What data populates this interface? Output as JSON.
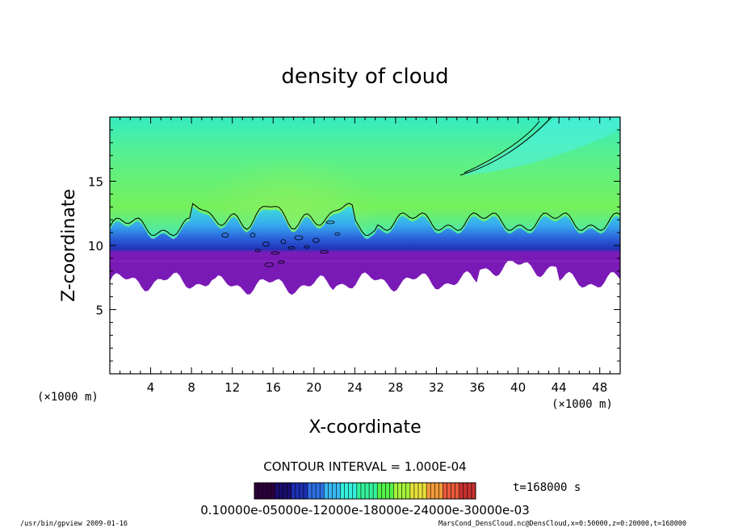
{
  "chart_data": {
    "type": "heatmap",
    "title": "density of cloud",
    "xlabel": "X-coordinate",
    "ylabel": "Z-coordinate",
    "x_unit_left": "(×1000 m)",
    "x_unit_right": "(×1000 m)",
    "xlim": [
      0,
      50
    ],
    "ylim": [
      0,
      20
    ],
    "x_ticks": [
      4,
      8,
      12,
      16,
      20,
      24,
      28,
      32,
      36,
      40,
      44,
      48
    ],
    "y_ticks": [
      5,
      10,
      15
    ],
    "contour_interval_text": "CONTOUR INTERVAL = 1.000E-04",
    "time_text": "t=168000 s",
    "colorbar_labels_text": "0.10000e-05000e-12000e-18000e-24000e-30000e-03",
    "colorbar_colors": [
      "#2a003a",
      "#1a0d6e",
      "#1c2fb0",
      "#2d6fe0",
      "#39b7f0",
      "#34f0dc",
      "#33f29a",
      "#55f24a",
      "#a6f23b",
      "#e8e03a",
      "#f29a3a",
      "#e85a3a",
      "#c73030"
    ],
    "cloud_layer": {
      "bottom_km_approx": 7.2,
      "top_km_approx": 12.5,
      "color_above": "#36f0a6",
      "color_below": "#ffffff",
      "colors_band": [
        "#a3f04a",
        "#36f0a6",
        "#37d7ea",
        "#2f8be8",
        "#2438c8",
        "#7a18b8"
      ]
    }
  },
  "footer": {
    "left": "/usr/bin/gpview 2009-01-16",
    "right": "MarsCond_DensCloud.nc@DensCloud,x=0:50000,z=0:20000,t=168000"
  }
}
